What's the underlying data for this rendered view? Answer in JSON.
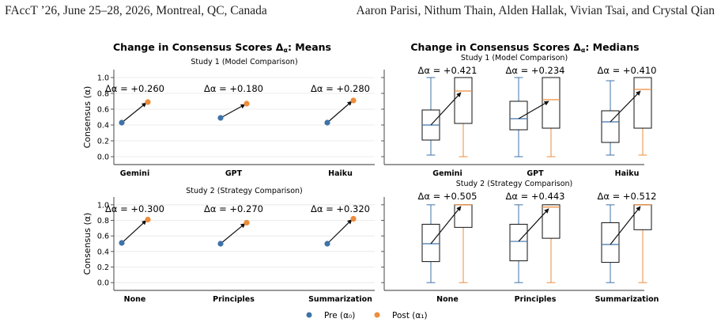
{
  "header": {
    "left": "FAccT ’26, June 25–28, 2026, Montreal, QC, Canada",
    "right": "Aaron Parisi, Nithum Thain, Alden Hallak, Vivian Tsai, and Crystal Qian"
  },
  "colors": {
    "pre": "#3f73a8",
    "post": "#ee8c3a",
    "arrow": "#111111",
    "grid": "#e6e6e6",
    "axis": "#333333"
  },
  "legend": {
    "pre": "Pre (α₀)",
    "post": "Post (α₁)",
    "placement": "bottom-center"
  },
  "chart_data": [
    {
      "id": "means",
      "type": "scatter",
      "title": "Change in Consensus Scores Δα: Means",
      "title_prefix": "Change in Consensus Scores ",
      "title_symbol": "Δ",
      "title_sub": "α",
      "title_suffix": ": Means",
      "ylabel": "Consensus (α)",
      "ylim": [
        -0.1,
        1.1
      ],
      "yticks": [
        "0.0",
        "0.2",
        "0.4",
        "0.6",
        "0.8",
        "1.0"
      ],
      "grid": true,
      "panels": [
        {
          "subtitle": "Study 1 (Model Comparison)",
          "categories": [
            "Gemini",
            "GPT",
            "Haiku"
          ],
          "pre": [
            0.43,
            0.49,
            0.43
          ],
          "post": [
            0.69,
            0.67,
            0.71
          ],
          "delta_labels": [
            "Δα = +0.260",
            "Δα = +0.180",
            "Δα = +0.280"
          ]
        },
        {
          "subtitle": "Study 2 (Strategy Comparison)",
          "categories": [
            "None",
            "Principles",
            "Summarization"
          ],
          "pre": [
            0.51,
            0.5,
            0.5
          ],
          "post": [
            0.81,
            0.77,
            0.82
          ],
          "delta_labels": [
            "Δα = +0.300",
            "Δα = +0.270",
            "Δα = +0.320"
          ]
        }
      ]
    },
    {
      "id": "medians",
      "type": "box",
      "title": "Change in Consensus Scores Δα: Medians",
      "title_prefix": "Change in Consensus Scores ",
      "title_symbol": "Δ",
      "title_sub": "α",
      "title_suffix": ": Medians",
      "ylim": [
        -0.1,
        1.1
      ],
      "panels": [
        {
          "subtitle": "Study 1 (Model Comparison)",
          "categories": [
            "Gemini",
            "GPT",
            "Haiku"
          ],
          "pre": [
            {
              "min": 0.02,
              "q1": 0.21,
              "median": 0.4,
              "q3": 0.59,
              "max": 1.0
            },
            {
              "min": 0.0,
              "q1": 0.34,
              "median": 0.48,
              "q3": 0.7,
              "max": 1.0
            },
            {
              "min": 0.02,
              "q1": 0.18,
              "median": 0.44,
              "q3": 0.58,
              "max": 0.96
            }
          ],
          "post": [
            {
              "min": 0.0,
              "q1": 0.42,
              "median": 0.83,
              "q3": 1.0,
              "max": 1.0
            },
            {
              "min": 0.0,
              "q1": 0.36,
              "median": 0.72,
              "q3": 1.0,
              "max": 1.0
            },
            {
              "min": 0.02,
              "q1": 0.36,
              "median": 0.85,
              "q3": 1.0,
              "max": 1.0
            }
          ],
          "delta_labels": [
            "Δα = +0.421",
            "Δα = +0.234",
            "Δα = +0.410"
          ]
        },
        {
          "subtitle": "Study 2 (Strategy Comparison)",
          "categories": [
            "None",
            "Principles",
            "Summarization"
          ],
          "pre": [
            {
              "min": 0.0,
              "q1": 0.27,
              "median": 0.5,
              "q3": 0.75,
              "max": 1.0
            },
            {
              "min": 0.0,
              "q1": 0.28,
              "median": 0.53,
              "q3": 0.75,
              "max": 1.0
            },
            {
              "min": 0.0,
              "q1": 0.26,
              "median": 0.49,
              "q3": 0.77,
              "max": 1.0
            }
          ],
          "post": [
            {
              "min": 0.0,
              "q1": 0.71,
              "median": 1.0,
              "q3": 1.0,
              "max": 1.0
            },
            {
              "min": 0.0,
              "q1": 0.57,
              "median": 0.97,
              "q3": 1.0,
              "max": 1.0
            },
            {
              "min": 0.0,
              "q1": 0.68,
              "median": 1.0,
              "q3": 1.0,
              "max": 1.0
            }
          ],
          "delta_labels": [
            "Δα = +0.505",
            "Δα = +0.443",
            "Δα = +0.512"
          ]
        }
      ]
    }
  ]
}
